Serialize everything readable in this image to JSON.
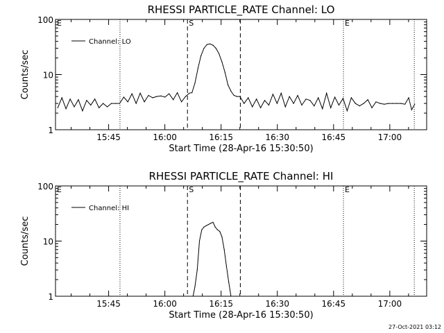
{
  "chart_data": [
    {
      "type": "line",
      "title": "RHESSI PARTICLE_RATE Channel: LO",
      "xlabel": "Start Time (28-Apr-16 15:30:50)",
      "ylabel": "Counts/sec",
      "yscale": "log",
      "ylim": [
        1,
        100
      ],
      "xlim_minutes": [
        0,
        99
      ],
      "xticks": [
        {
          "label": "15:45",
          "t": 14.17
        },
        {
          "label": "16:00",
          "t": 29.17
        },
        {
          "label": "16:15",
          "t": 44.17
        },
        {
          "label": "16:30",
          "t": 59.17
        },
        {
          "label": "16:45",
          "t": 74.17
        },
        {
          "label": "17:00",
          "t": 89.17
        }
      ],
      "yticks": [
        {
          "label": "1",
          "v": 1
        },
        {
          "label": "10",
          "v": 10
        },
        {
          "label": "100",
          "v": 100
        }
      ],
      "markers": [
        {
          "label": "E",
          "t": 0,
          "style": "dotted"
        },
        {
          "label": "",
          "t": 17.2,
          "style": "dotted"
        },
        {
          "label": "S",
          "t": 35.2,
          "style": "dashed"
        },
        {
          "label": "",
          "t": 49.3,
          "style": "dashed"
        },
        {
          "label": "E",
          "t": 76.8,
          "style": "dotted"
        },
        {
          "label": "",
          "t": 95.7,
          "style": "dotted"
        }
      ],
      "legend": {
        "label": "Channel: LO",
        "position": "top-left"
      },
      "series": [
        {
          "name": "Channel: LO",
          "x": [
            0.6,
            1.7,
            2.8,
            3.9,
            5.0,
            6.1,
            7.2,
            8.3,
            9.4,
            10.5,
            11.6,
            12.7,
            13.8,
            14.9,
            16.0,
            17.1,
            18.2,
            19.3,
            20.4,
            21.5,
            22.6,
            23.7,
            24.8,
            25.9,
            27.0,
            28.1,
            29.2,
            30.3,
            31.4,
            32.5,
            33.6,
            34.7,
            35.7,
            36.4,
            37.2,
            38.0,
            38.8,
            39.6,
            40.4,
            41.2,
            42.0,
            42.8,
            43.6,
            44.4,
            45.2,
            46.0,
            46.8,
            47.6,
            48.4,
            49.2,
            50.3,
            51.4,
            52.5,
            53.6,
            54.7,
            55.8,
            56.9,
            58.0,
            59.1,
            60.2,
            61.3,
            62.4,
            63.5,
            64.6,
            65.7,
            66.8,
            67.9,
            69.0,
            70.1,
            71.2,
            72.3,
            73.4,
            74.5,
            75.6,
            76.7,
            77.8,
            78.9,
            80.0,
            81.1,
            82.2,
            83.3,
            84.4,
            85.5,
            86.6,
            87.7,
            88.8,
            89.9,
            91.0,
            92.1,
            93.2,
            94.2,
            95.0,
            95.8
          ],
          "values": [
            2.5,
            3.8,
            2.4,
            3.6,
            2.6,
            3.5,
            2.2,
            3.4,
            2.8,
            3.6,
            2.5,
            3.0,
            2.6,
            3.0,
            3.0,
            3.0,
            3.9,
            3.2,
            4.5,
            3.0,
            4.6,
            3.2,
            4.2,
            3.8,
            4.0,
            4.1,
            3.9,
            4.5,
            3.5,
            4.7,
            3.2,
            4.0,
            4.6,
            4.7,
            7.0,
            13.0,
            22.0,
            30.0,
            35.0,
            36.0,
            34.0,
            30.0,
            24.0,
            17.0,
            11.0,
            6.5,
            5.0,
            4.2,
            4.0,
            4.0,
            3.0,
            3.8,
            2.6,
            3.6,
            2.5,
            3.4,
            2.8,
            4.4,
            3.0,
            4.6,
            2.6,
            4.0,
            3.0,
            4.2,
            2.8,
            3.6,
            3.4,
            2.7,
            3.8,
            2.4,
            4.6,
            2.5,
            3.9,
            2.8,
            3.7,
            2.2,
            3.8,
            3.0,
            2.7,
            3.0,
            3.5,
            2.5,
            3.2,
            3.0,
            2.9,
            3.0,
            3.0,
            3.0,
            3.0,
            2.9,
            3.8,
            2.3,
            2.9
          ]
        }
      ]
    },
    {
      "type": "line",
      "title": "RHESSI PARTICLE_RATE Channel: HI",
      "xlabel": "Start Time (28-Apr-16 15:30:50)",
      "ylabel": "Counts/sec",
      "yscale": "log",
      "ylim": [
        1,
        100
      ],
      "xlim_minutes": [
        0,
        99
      ],
      "xticks": [
        {
          "label": "15:45",
          "t": 14.17
        },
        {
          "label": "16:00",
          "t": 29.17
        },
        {
          "label": "16:15",
          "t": 44.17
        },
        {
          "label": "16:30",
          "t": 59.17
        },
        {
          "label": "16:45",
          "t": 74.17
        },
        {
          "label": "17:00",
          "t": 89.17
        }
      ],
      "yticks": [
        {
          "label": "1",
          "v": 1
        },
        {
          "label": "10",
          "v": 10
        },
        {
          "label": "100",
          "v": 100
        }
      ],
      "markers": [
        {
          "label": "E",
          "t": 0,
          "style": "dotted"
        },
        {
          "label": "",
          "t": 17.2,
          "style": "dotted"
        },
        {
          "label": "S",
          "t": 35.2,
          "style": "dashed"
        },
        {
          "label": "",
          "t": 49.3,
          "style": "dashed"
        },
        {
          "label": "E",
          "t": 76.8,
          "style": "dotted"
        },
        {
          "label": "",
          "t": 95.7,
          "style": "dotted"
        }
      ],
      "legend": {
        "label": "Channel: HI",
        "position": "top-left"
      },
      "series": [
        {
          "name": "Channel: HI",
          "x": [
            36.7,
            37.2,
            37.8,
            38.4,
            39.0,
            39.6,
            40.2,
            40.8,
            41.4,
            42.0,
            42.6,
            43.2,
            43.8,
            44.4,
            45.0,
            45.6,
            46.2,
            46.8
          ],
          "values": [
            1.0,
            1.5,
            3.0,
            10.0,
            16.0,
            18.0,
            19.0,
            20.0,
            21.0,
            22.0,
            18.0,
            16.0,
            15.0,
            12.0,
            7.0,
            3.5,
            1.8,
            1.0
          ]
        }
      ]
    }
  ],
  "timestamp": "27-Oct-2021 03:12"
}
